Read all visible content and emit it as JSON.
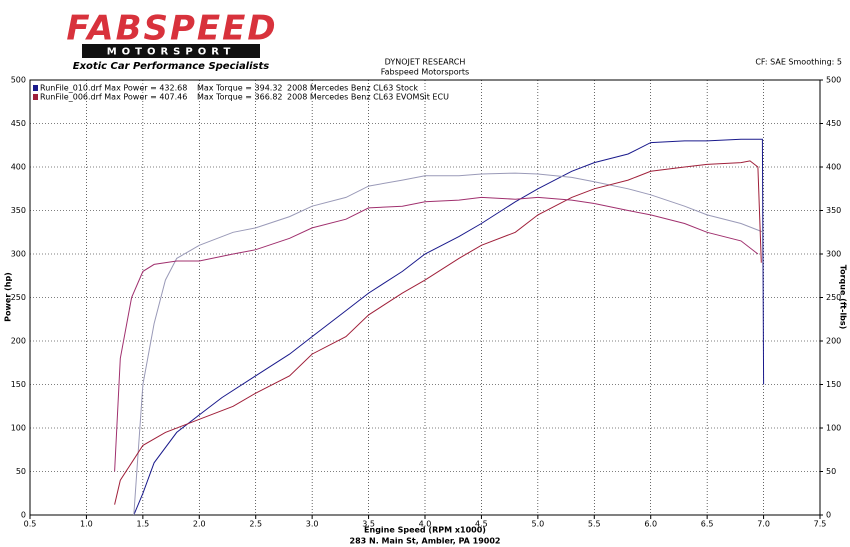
{
  "header": {
    "logo": "FABSPEED",
    "logo_sub": "MOTORSPORT",
    "tagline": "Exotic Car Performance Specialists",
    "title": "DYNOJET RESEARCH",
    "subtitle": "Fabspeed Motorsports",
    "settings": "CF: SAE  Smoothing: 5"
  },
  "footer": "283 N. Main St, Ambler, PA 19002",
  "chart_data": {
    "type": "line",
    "x_label": "Engine Speed (RPM x1000)",
    "y_label": "Power (hp)",
    "y2_label": "Torque (ft-lbs)",
    "xlim": [
      0.5,
      7.5
    ],
    "xticks": [
      0.5,
      {
        "value": 1,
        "label": "1.0"
      },
      1.5,
      {
        "value": 2,
        "label": "2.0"
      },
      2.5,
      {
        "value": 3,
        "label": "3.0"
      },
      3.5,
      {
        "value": 4,
        "label": "4.0"
      },
      4.5,
      {
        "value": 5,
        "label": "5.0"
      },
      5.5,
      {
        "value": 6,
        "label": "6.0"
      },
      6.5,
      {
        "value": 7,
        "label": "7.0"
      },
      7.5
    ],
    "ylim": [
      0,
      500
    ],
    "yticks": [
      0,
      50,
      100,
      150,
      200,
      250,
      300,
      350,
      400,
      450,
      500
    ],
    "y2lim": [
      0,
      500
    ],
    "y2ticks": [
      0,
      50,
      100,
      150,
      200,
      250,
      300,
      350,
      400,
      450,
      500
    ],
    "grid": true,
    "legend": [
      {
        "color": "#1a1a8c",
        "texts": [
          "RunFile_010.drf Max Power = 432.68",
          "Max Torque = 394.32",
          "2008 Mercedes Benz CL63 Stock"
        ]
      },
      {
        "color": "#a0203a",
        "texts": [
          "RunFile_006.drf Max Power = 407.46",
          "Max Torque = 366.82",
          "2008 Mercedes Benz CL63 EVOMSit ECU"
        ]
      }
    ],
    "series": [
      {
        "color": "#1a1a8c",
        "x": [
          1.42,
          1.5,
          1.6,
          1.8,
          2.0,
          2.2,
          2.5,
          2.8,
          3.0,
          3.3,
          3.5,
          3.8,
          4.0,
          4.3,
          4.5,
          4.8,
          5.0,
          5.3,
          5.5,
          5.8,
          6.0,
          6.3,
          6.5,
          6.8,
          6.99,
          7.0
        ],
        "values": [
          0,
          25,
          60,
          95,
          115,
          135,
          160,
          185,
          205,
          235,
          255,
          280,
          300,
          320,
          335,
          360,
          375,
          395,
          405,
          415,
          428,
          430,
          430,
          432,
          432,
          150
        ]
      },
      {
        "color": "#9a9ab8",
        "axis": "y2",
        "x": [
          1.42,
          1.5,
          1.6,
          1.7,
          1.8,
          2.0,
          2.3,
          2.5,
          2.8,
          3.0,
          3.3,
          3.5,
          3.8,
          4.0,
          4.3,
          4.5,
          4.8,
          5.0,
          5.3,
          5.5,
          5.8,
          6.0,
          6.3,
          6.5,
          6.8,
          7.0
        ],
        "values": [
          0,
          150,
          220,
          270,
          295,
          310,
          325,
          330,
          343,
          355,
          365,
          378,
          385,
          390,
          390,
          392,
          393,
          392,
          388,
          383,
          375,
          368,
          355,
          345,
          335,
          325
        ]
      },
      {
        "color": "#a0203a",
        "x": [
          1.25,
          1.3,
          1.4,
          1.5,
          1.7,
          2.0,
          2.3,
          2.5,
          2.8,
          3.0,
          3.3,
          3.5,
          3.8,
          4.0,
          4.3,
          4.5,
          4.8,
          5.0,
          5.3,
          5.5,
          5.8,
          6.0,
          6.3,
          6.5,
          6.8,
          6.88,
          6.95,
          6.98
        ],
        "values": [
          12,
          40,
          60,
          80,
          95,
          110,
          125,
          140,
          160,
          185,
          205,
          230,
          255,
          270,
          295,
          310,
          325,
          345,
          365,
          375,
          385,
          395,
          400,
          403,
          405,
          407,
          400,
          290
        ]
      },
      {
        "color": "#a0306e",
        "axis": "y2",
        "x": [
          1.25,
          1.3,
          1.4,
          1.5,
          1.6,
          1.8,
          2.0,
          2.3,
          2.5,
          2.8,
          3.0,
          3.3,
          3.5,
          3.8,
          4.0,
          4.3,
          4.5,
          4.8,
          5.0,
          5.3,
          5.5,
          5.8,
          6.0,
          6.3,
          6.5,
          6.8,
          6.95
        ],
        "values": [
          50,
          180,
          250,
          280,
          288,
          292,
          292,
          300,
          305,
          318,
          330,
          340,
          353,
          355,
          360,
          362,
          365,
          363,
          365,
          362,
          358,
          350,
          345,
          335,
          325,
          315,
          300
        ]
      }
    ]
  }
}
